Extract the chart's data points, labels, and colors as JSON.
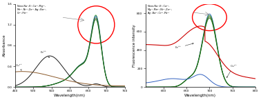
{
  "left_panel": {
    "xlabel": "Wavelength(nm)",
    "ylabel": "Absorbance",
    "xlim": [
      450,
      750
    ],
    "ylim": [
      0,
      1.6
    ],
    "yticks": [
      0.0,
      0.4,
      0.8,
      1.2,
      1.6
    ],
    "legend_text": "None,Na⁺,K⁺,Ca²⁺,Mg²⁺,\nMn²⁺,Ni²⁺,Zn²⁺,Ag⁺,Ba²⁺,\nCr³⁺,Pb²⁺",
    "annotation_fe": "Fe³⁺",
    "annotation_cu": "Cu²⁺"
  },
  "right_panel": {
    "xlabel": "Wavelength(nm)",
    "ylabel": "Fluorescence intensity",
    "xlim": [
      560,
      800
    ],
    "ylim": [
      0,
      900
    ],
    "yticks": [
      0,
      200,
      400,
      600,
      800
    ],
    "legend_text": "None,Na⁺,K⁺,Ca²⁺,\nMg²⁺,Mn²⁺,Ni²⁺,Zn²⁺,\nAg⁺,Ba²⁺,Cr³⁺,Pb²⁺",
    "annotation_fe": "Fe³⁺",
    "annotation_cu": "Cu²⁺"
  }
}
